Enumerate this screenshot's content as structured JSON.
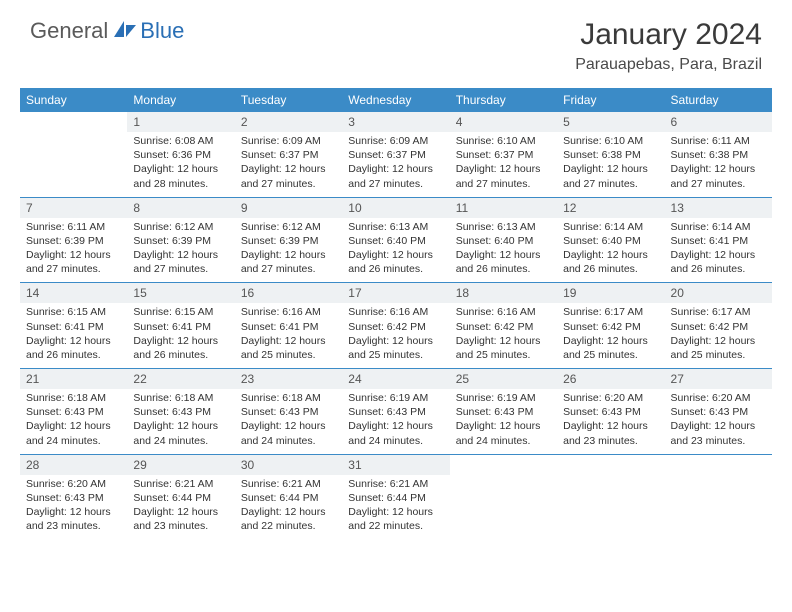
{
  "brand": {
    "part1": "General",
    "part2": "Blue"
  },
  "title": "January 2024",
  "location": "Parauapebas, Para, Brazil",
  "colors": {
    "header_bg": "#3b8bc7",
    "daynum_bg": "#eef1f3",
    "text": "#333333",
    "brand_blue": "#2a6fb5",
    "brand_gray": "#5a5a5a"
  },
  "daysOfWeek": [
    "Sunday",
    "Monday",
    "Tuesday",
    "Wednesday",
    "Thursday",
    "Friday",
    "Saturday"
  ],
  "weeks": [
    [
      {
        "n": "",
        "lines": [
          "",
          "",
          "",
          ""
        ]
      },
      {
        "n": "1",
        "lines": [
          "Sunrise: 6:08 AM",
          "Sunset: 6:36 PM",
          "Daylight: 12 hours",
          "and 28 minutes."
        ]
      },
      {
        "n": "2",
        "lines": [
          "Sunrise: 6:09 AM",
          "Sunset: 6:37 PM",
          "Daylight: 12 hours",
          "and 27 minutes."
        ]
      },
      {
        "n": "3",
        "lines": [
          "Sunrise: 6:09 AM",
          "Sunset: 6:37 PM",
          "Daylight: 12 hours",
          "and 27 minutes."
        ]
      },
      {
        "n": "4",
        "lines": [
          "Sunrise: 6:10 AM",
          "Sunset: 6:37 PM",
          "Daylight: 12 hours",
          "and 27 minutes."
        ]
      },
      {
        "n": "5",
        "lines": [
          "Sunrise: 6:10 AM",
          "Sunset: 6:38 PM",
          "Daylight: 12 hours",
          "and 27 minutes."
        ]
      },
      {
        "n": "6",
        "lines": [
          "Sunrise: 6:11 AM",
          "Sunset: 6:38 PM",
          "Daylight: 12 hours",
          "and 27 minutes."
        ]
      }
    ],
    [
      {
        "n": "7",
        "lines": [
          "Sunrise: 6:11 AM",
          "Sunset: 6:39 PM",
          "Daylight: 12 hours",
          "and 27 minutes."
        ]
      },
      {
        "n": "8",
        "lines": [
          "Sunrise: 6:12 AM",
          "Sunset: 6:39 PM",
          "Daylight: 12 hours",
          "and 27 minutes."
        ]
      },
      {
        "n": "9",
        "lines": [
          "Sunrise: 6:12 AM",
          "Sunset: 6:39 PM",
          "Daylight: 12 hours",
          "and 27 minutes."
        ]
      },
      {
        "n": "10",
        "lines": [
          "Sunrise: 6:13 AM",
          "Sunset: 6:40 PM",
          "Daylight: 12 hours",
          "and 26 minutes."
        ]
      },
      {
        "n": "11",
        "lines": [
          "Sunrise: 6:13 AM",
          "Sunset: 6:40 PM",
          "Daylight: 12 hours",
          "and 26 minutes."
        ]
      },
      {
        "n": "12",
        "lines": [
          "Sunrise: 6:14 AM",
          "Sunset: 6:40 PM",
          "Daylight: 12 hours",
          "and 26 minutes."
        ]
      },
      {
        "n": "13",
        "lines": [
          "Sunrise: 6:14 AM",
          "Sunset: 6:41 PM",
          "Daylight: 12 hours",
          "and 26 minutes."
        ]
      }
    ],
    [
      {
        "n": "14",
        "lines": [
          "Sunrise: 6:15 AM",
          "Sunset: 6:41 PM",
          "Daylight: 12 hours",
          "and 26 minutes."
        ]
      },
      {
        "n": "15",
        "lines": [
          "Sunrise: 6:15 AM",
          "Sunset: 6:41 PM",
          "Daylight: 12 hours",
          "and 26 minutes."
        ]
      },
      {
        "n": "16",
        "lines": [
          "Sunrise: 6:16 AM",
          "Sunset: 6:41 PM",
          "Daylight: 12 hours",
          "and 25 minutes."
        ]
      },
      {
        "n": "17",
        "lines": [
          "Sunrise: 6:16 AM",
          "Sunset: 6:42 PM",
          "Daylight: 12 hours",
          "and 25 minutes."
        ]
      },
      {
        "n": "18",
        "lines": [
          "Sunrise: 6:16 AM",
          "Sunset: 6:42 PM",
          "Daylight: 12 hours",
          "and 25 minutes."
        ]
      },
      {
        "n": "19",
        "lines": [
          "Sunrise: 6:17 AM",
          "Sunset: 6:42 PM",
          "Daylight: 12 hours",
          "and 25 minutes."
        ]
      },
      {
        "n": "20",
        "lines": [
          "Sunrise: 6:17 AM",
          "Sunset: 6:42 PM",
          "Daylight: 12 hours",
          "and 25 minutes."
        ]
      }
    ],
    [
      {
        "n": "21",
        "lines": [
          "Sunrise: 6:18 AM",
          "Sunset: 6:43 PM",
          "Daylight: 12 hours",
          "and 24 minutes."
        ]
      },
      {
        "n": "22",
        "lines": [
          "Sunrise: 6:18 AM",
          "Sunset: 6:43 PM",
          "Daylight: 12 hours",
          "and 24 minutes."
        ]
      },
      {
        "n": "23",
        "lines": [
          "Sunrise: 6:18 AM",
          "Sunset: 6:43 PM",
          "Daylight: 12 hours",
          "and 24 minutes."
        ]
      },
      {
        "n": "24",
        "lines": [
          "Sunrise: 6:19 AM",
          "Sunset: 6:43 PM",
          "Daylight: 12 hours",
          "and 24 minutes."
        ]
      },
      {
        "n": "25",
        "lines": [
          "Sunrise: 6:19 AM",
          "Sunset: 6:43 PM",
          "Daylight: 12 hours",
          "and 24 minutes."
        ]
      },
      {
        "n": "26",
        "lines": [
          "Sunrise: 6:20 AM",
          "Sunset: 6:43 PM",
          "Daylight: 12 hours",
          "and 23 minutes."
        ]
      },
      {
        "n": "27",
        "lines": [
          "Sunrise: 6:20 AM",
          "Sunset: 6:43 PM",
          "Daylight: 12 hours",
          "and 23 minutes."
        ]
      }
    ],
    [
      {
        "n": "28",
        "lines": [
          "Sunrise: 6:20 AM",
          "Sunset: 6:43 PM",
          "Daylight: 12 hours",
          "and 23 minutes."
        ]
      },
      {
        "n": "29",
        "lines": [
          "Sunrise: 6:21 AM",
          "Sunset: 6:44 PM",
          "Daylight: 12 hours",
          "and 23 minutes."
        ]
      },
      {
        "n": "30",
        "lines": [
          "Sunrise: 6:21 AM",
          "Sunset: 6:44 PM",
          "Daylight: 12 hours",
          "and 22 minutes."
        ]
      },
      {
        "n": "31",
        "lines": [
          "Sunrise: 6:21 AM",
          "Sunset: 6:44 PM",
          "Daylight: 12 hours",
          "and 22 minutes."
        ]
      },
      {
        "n": "",
        "lines": [
          "",
          "",
          "",
          ""
        ]
      },
      {
        "n": "",
        "lines": [
          "",
          "",
          "",
          ""
        ]
      },
      {
        "n": "",
        "lines": [
          "",
          "",
          "",
          ""
        ]
      }
    ]
  ]
}
